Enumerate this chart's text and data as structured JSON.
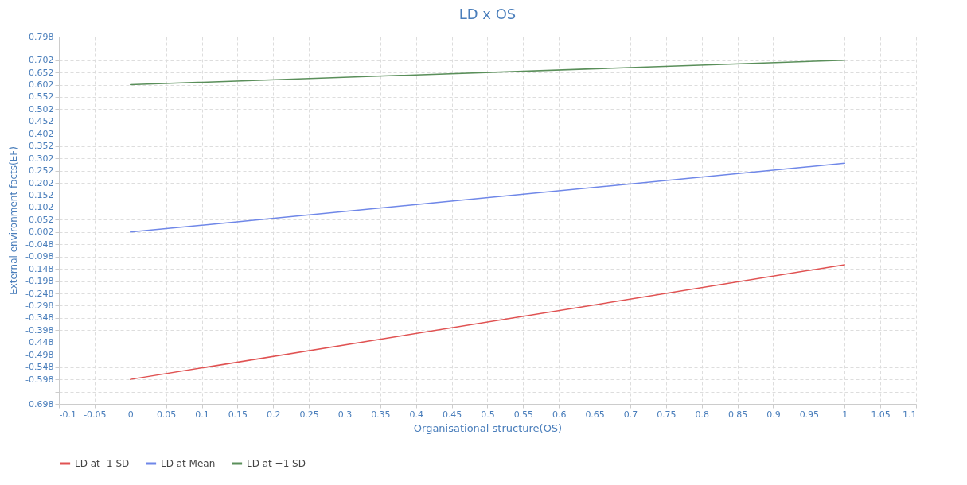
{
  "chart_data": {
    "type": "line",
    "title": "LD x OS",
    "xlabel": "Organisational structure(OS)",
    "ylabel": "External environment facts(EF)",
    "x": [
      0,
      1
    ],
    "series": [
      {
        "name": "LD at -1 SD",
        "color": "#e05252",
        "values": [
          -0.598,
          -0.131
        ]
      },
      {
        "name": "LD at Mean",
        "color": "#6f87e8",
        "values": [
          0.002,
          0.282
        ]
      },
      {
        "name": "LD at +1 SD",
        "color": "#5a8f5a",
        "values": [
          0.602,
          0.702
        ]
      }
    ],
    "xlim": [
      -0.1,
      1.1
    ],
    "xticks": [
      -0.1,
      -0.05,
      0,
      0.05,
      0.1,
      0.15,
      0.2,
      0.25,
      0.3,
      0.35,
      0.4,
      0.45,
      0.5,
      0.55,
      0.6,
      0.65,
      0.7,
      0.75,
      0.8,
      0.85,
      0.9,
      0.95,
      1,
      1.05,
      1.1
    ],
    "ylim": [
      -0.698,
      0.798
    ],
    "yticks": [
      -0.698,
      {
        "value": -0.648,
        "label": null
      },
      -0.598,
      -0.548,
      -0.498,
      -0.448,
      -0.398,
      -0.348,
      -0.298,
      -0.248,
      -0.198,
      -0.148,
      -0.098,
      -0.048,
      0.002,
      0.052,
      0.102,
      0.152,
      0.202,
      0.252,
      0.302,
      0.352,
      0.402,
      0.452,
      0.502,
      0.552,
      0.602,
      0.652,
      0.702,
      {
        "value": 0.752,
        "label": null
      },
      0.798
    ],
    "grid": true,
    "legend": "bottom",
    "marker": "none",
    "line_style": "solid"
  }
}
